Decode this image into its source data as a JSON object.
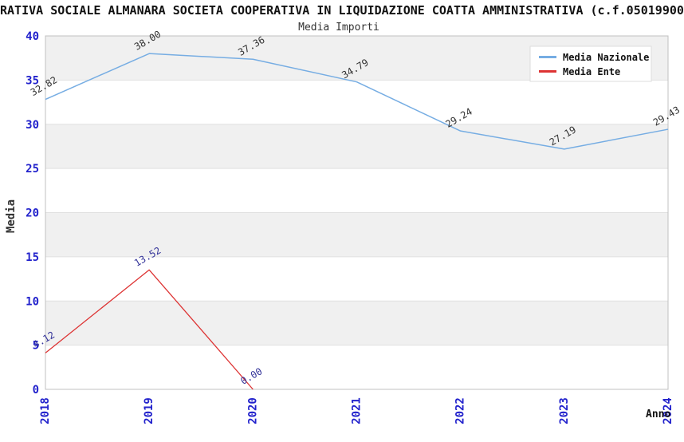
{
  "chart_data": {
    "type": "line",
    "title": "RATIVA SOCIALE ALMANARA SOCIETA COOPERATIVA IN LIQUIDAZIONE COATTA AMMINISTRATIVA (c.f.05019900",
    "subtitle": "Media Importi",
    "xlabel": "Anno",
    "ylabel": "Media",
    "x": [
      2018,
      2019,
      2020,
      2021,
      2022,
      2023,
      2024
    ],
    "ylim": [
      0,
      40
    ],
    "ytick_step": 5,
    "grid": "horizontal-bands",
    "legend_position": "top-right",
    "series": [
      {
        "name": "Media Nazionale",
        "color": "#76ADE3",
        "label_color": "#333333",
        "values": [
          32.82,
          38.0,
          37.36,
          34.79,
          29.24,
          27.19,
          29.43
        ],
        "labels": [
          "32.82",
          "38.00",
          "37.36",
          "34.79",
          "29.24",
          "27.19",
          "29.43"
        ]
      },
      {
        "name": "Media Ente",
        "color": "#DD3333",
        "label_color": "#333399",
        "values": [
          4.12,
          13.52,
          0.0,
          null,
          null,
          null,
          null
        ],
        "labels": [
          "4.12",
          "13.52",
          "0.00",
          null,
          null,
          null,
          null
        ]
      }
    ]
  },
  "colors": {
    "tick_label": "#2222CC",
    "band_gray": "#F0F0F0",
    "band_white": "#FFFFFF",
    "gridline": "#E0E0E0",
    "plot_border": "#C0C0C0",
    "legend_bg": "#FFFFFF",
    "legend_border": "#DDDDDD",
    "title_text": "#111111",
    "subtitle_text": "#333333"
  }
}
